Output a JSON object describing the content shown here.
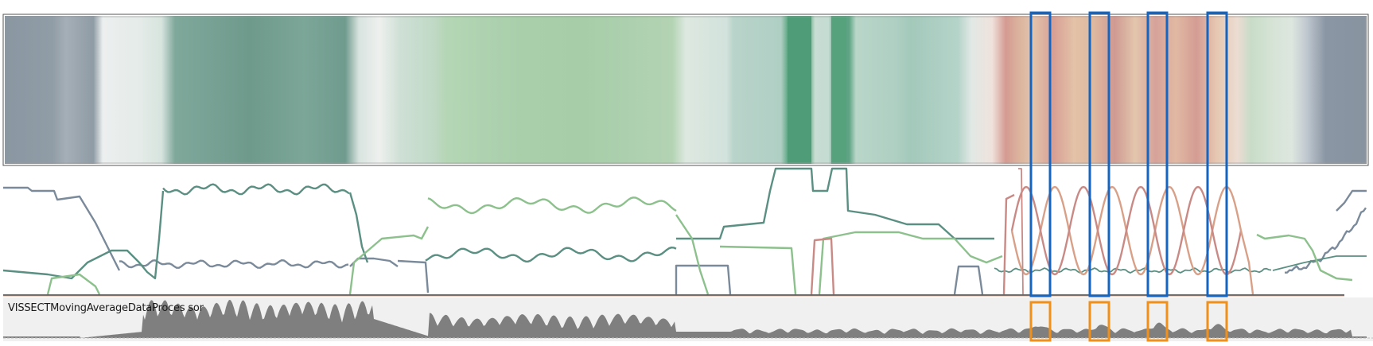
{
  "track_label": "VISSECTMovingAverageDataProces sor",
  "colors": {
    "gray_blue": "#7a8a9a",
    "dark_teal": "#5a8f82",
    "light_green": "#8cc08c",
    "mid_green": "#5ea882",
    "salmon": "#d9a088",
    "dusty_rose": "#c98a86",
    "highlight_blue": "#1565c0",
    "highlight_orange": "#f0901a",
    "area_gray": "#7f7f7f"
  },
  "highlights": {
    "count": 4
  }
}
